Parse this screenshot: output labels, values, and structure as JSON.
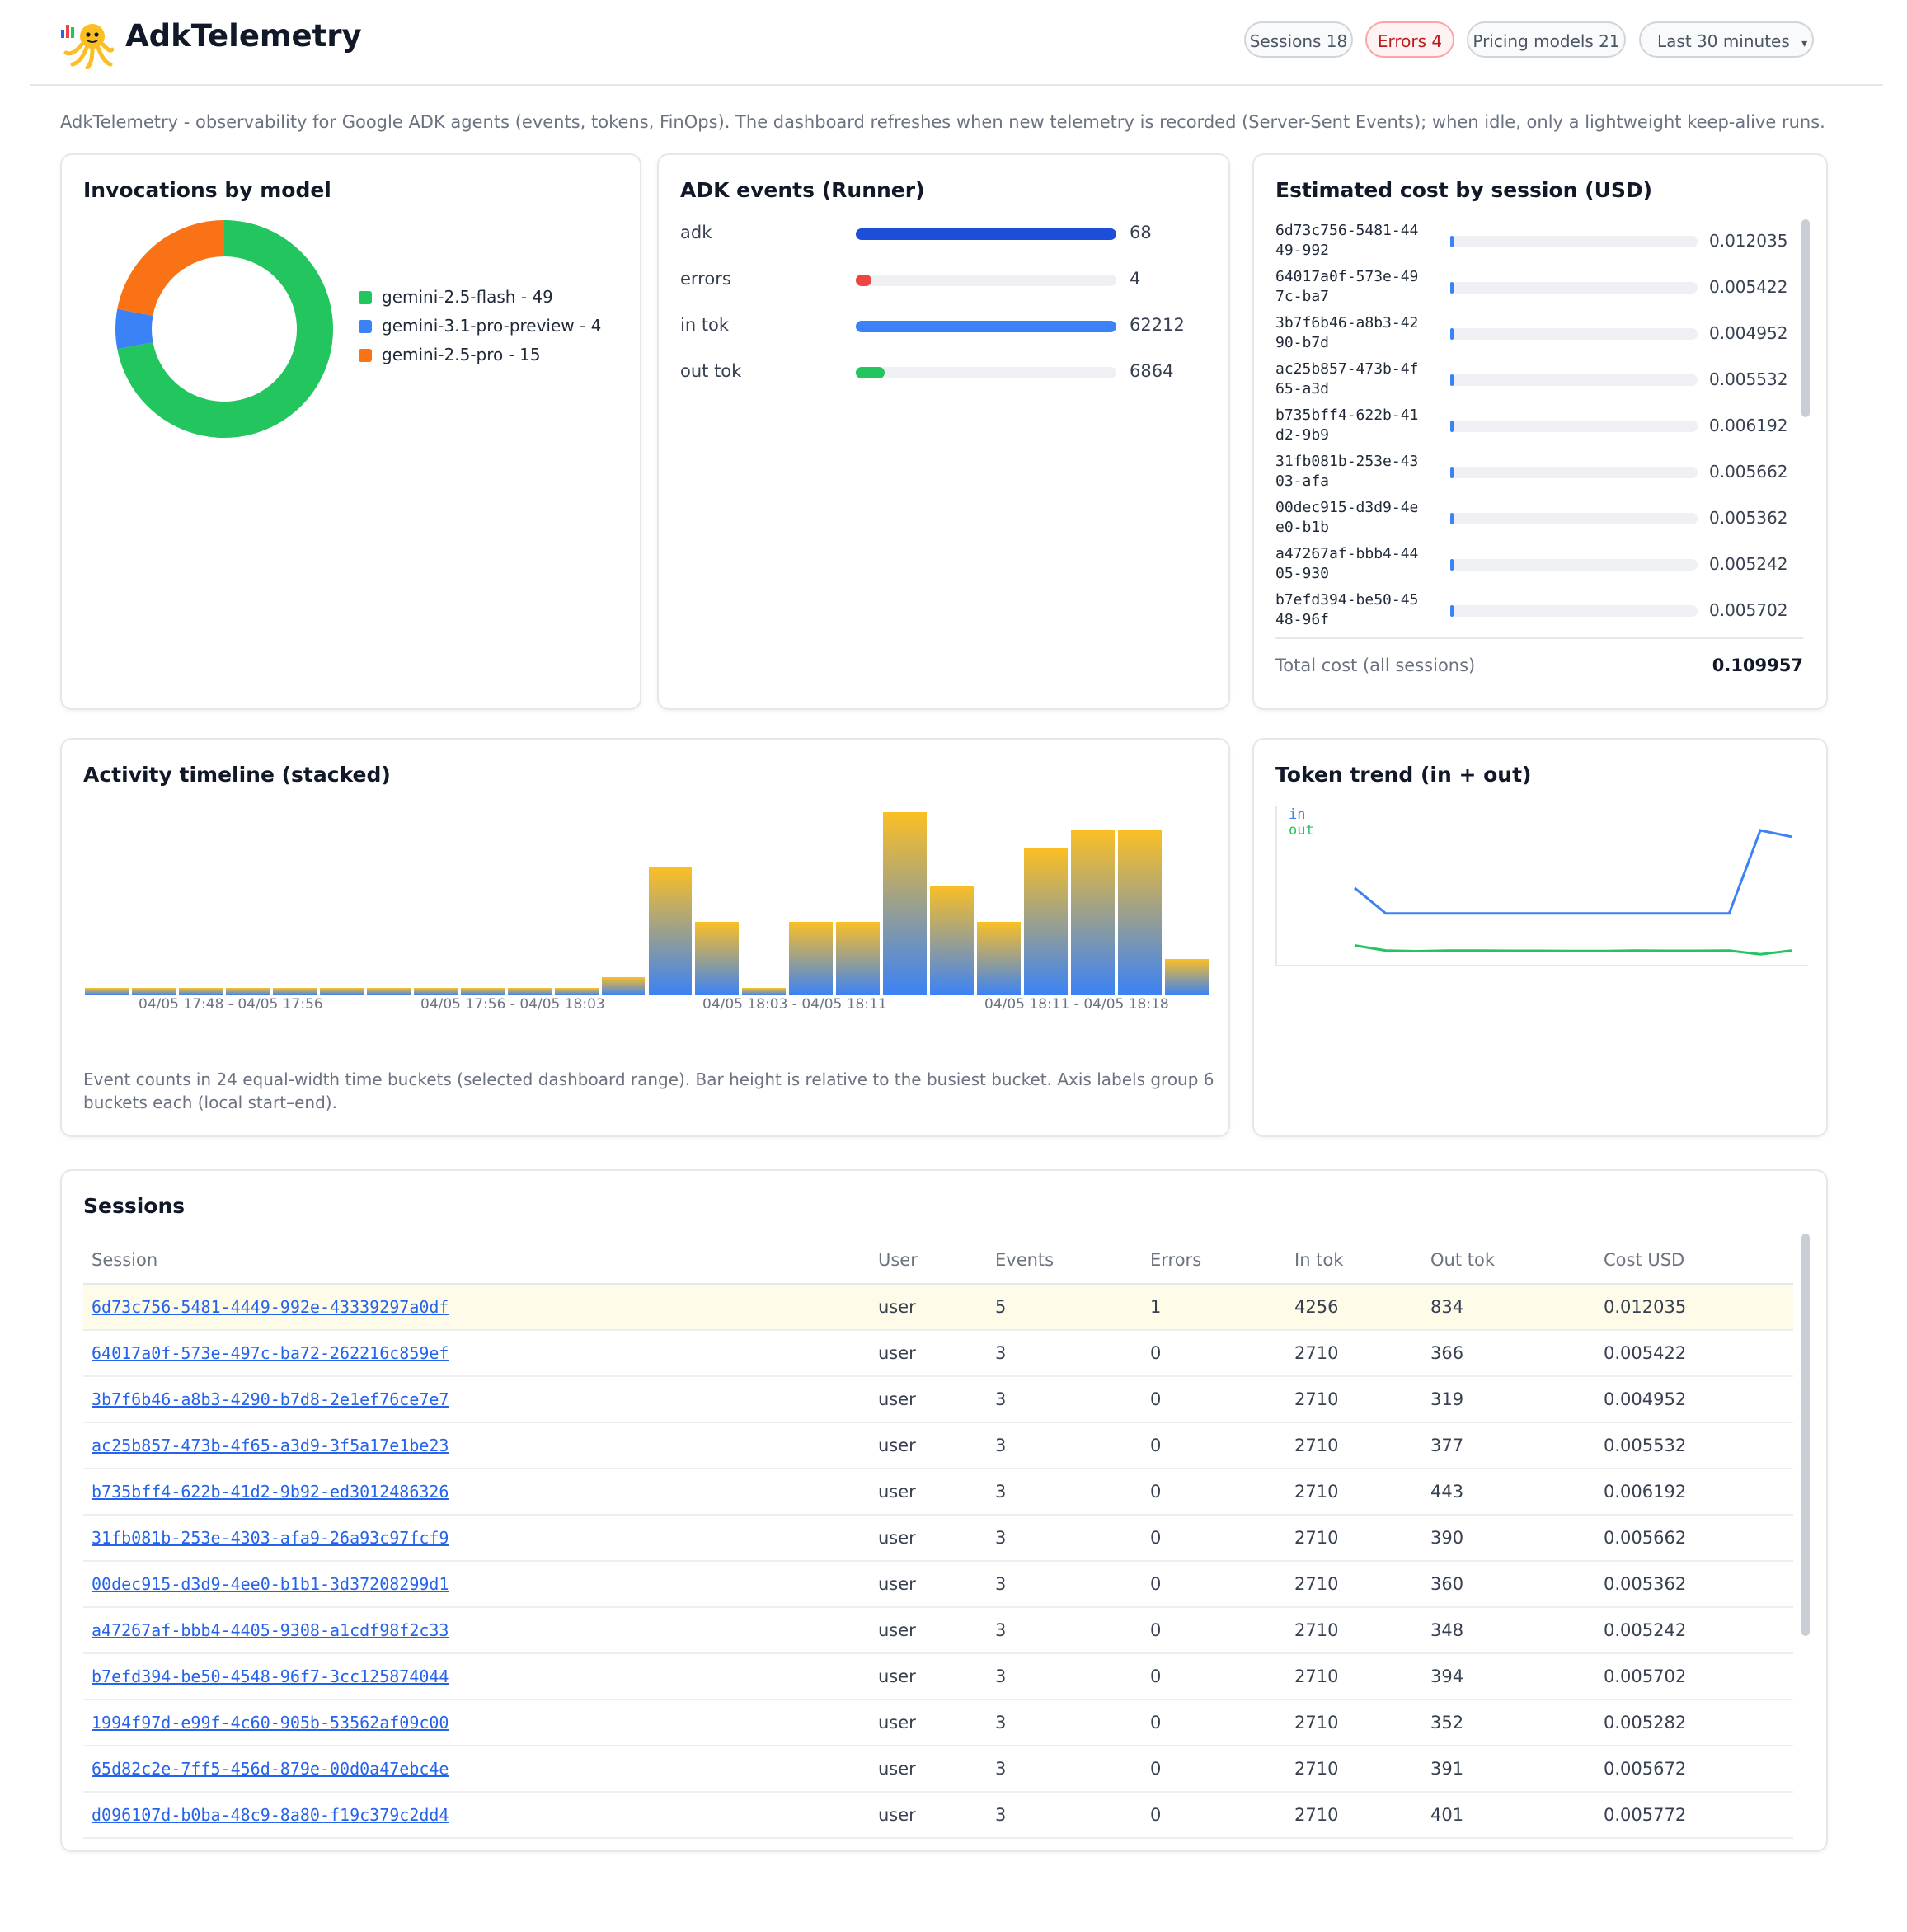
{
  "app": {
    "title": "AdkTelemetry"
  },
  "header": {
    "sessions_pill": "Sessions 18",
    "errors_pill": "Errors 4",
    "pricing_pill": "Pricing models 21",
    "range_select": "Last 30 minutes",
    "range_chevron": "▾"
  },
  "subtitle": "AdkTelemetry - observability for Google ADK agents (events, tokens, FinOps). The dashboard refreshes when new telemetry is recorded (Server-Sent Events); when idle, only a lightweight keep-alive runs.",
  "colors": {
    "flash": "#22c55e",
    "preview": "#3b82f6",
    "pro": "#f97316",
    "adk": "#1d4ed8",
    "errors": "#ef4444",
    "in_tok": "#3b82f6",
    "out_tok": "#22c55e",
    "accent": "#2563eb"
  },
  "invocations": {
    "title": "Invocations by model",
    "legend": [
      {
        "label": "gemini-2.5-flash - 49",
        "value": 49,
        "color": "#22c55e"
      },
      {
        "label": "gemini-3.1-pro-preview - 4",
        "value": 4,
        "color": "#3b82f6"
      },
      {
        "label": "gemini-2.5-pro - 15",
        "value": 15,
        "color": "#f97316"
      }
    ]
  },
  "adk_events": {
    "title": "ADK events (Runner)",
    "rows": [
      {
        "label": "adk",
        "value": "68",
        "fraction": 1.0,
        "color": "#1d4ed8"
      },
      {
        "label": "errors",
        "value": "4",
        "fraction": 0.06,
        "color": "#ef4444"
      },
      {
        "label": "in tok",
        "value": "62212",
        "fraction": 1.0,
        "color": "#3b82f6"
      },
      {
        "label": "out tok",
        "value": "6864",
        "fraction": 0.11,
        "color": "#22c55e"
      }
    ]
  },
  "cost_by_session": {
    "title": "Estimated cost by session (USD)",
    "rows": [
      {
        "id": "6d73c756-5481-4449-992",
        "value": "0.012035"
      },
      {
        "id": "64017a0f-573e-497c-ba7",
        "value": "0.005422"
      },
      {
        "id": "3b7f6b46-a8b3-4290-b7d",
        "value": "0.004952"
      },
      {
        "id": "ac25b857-473b-4f65-a3d",
        "value": "0.005532"
      },
      {
        "id": "b735bff4-622b-41d2-9b9",
        "value": "0.006192"
      },
      {
        "id": "31fb081b-253e-4303-afa",
        "value": "0.005662"
      },
      {
        "id": "00dec915-d3d9-4ee0-b1b",
        "value": "0.005362"
      },
      {
        "id": "a47267af-bbb4-4405-930",
        "value": "0.005242"
      },
      {
        "id": "b7efd394-be50-4548-96f",
        "value": "0.005702"
      }
    ],
    "total_label": "Total cost (all sessions)",
    "total_value": "0.109957"
  },
  "activity": {
    "title": "Activity timeline (stacked)",
    "axis_labels": [
      "04/05 17:48 - 04/05 17:56",
      "04/05 17:56 - 04/05 18:03",
      "04/05 18:03 - 04/05 18:11",
      "04/05 18:11 - 04/05 18:18"
    ],
    "note": "Event counts in 24 equal-width time buckets (selected dashboard range). Bar height is relative to the busiest bucket. Axis labels group 6 buckets each (local start–end).",
    "chart_data": {
      "type": "bar",
      "bucket_count": 24,
      "values_relative": [
        0.04,
        0.04,
        0.04,
        0.04,
        0.04,
        0.04,
        0.04,
        0.04,
        0.04,
        0.04,
        0.04,
        0.1,
        0.7,
        0.4,
        0.04,
        0.4,
        0.4,
        1.0,
        0.6,
        0.4,
        0.8,
        0.9,
        0.9,
        0.2
      ]
    }
  },
  "token_trend": {
    "title": "Token trend (in + out)",
    "legend_in": "in",
    "legend_out": "out",
    "chart_data": {
      "type": "line",
      "series": [
        {
          "name": "in",
          "values": [
            0.55,
            0.35,
            0.35,
            0.35,
            0.35,
            0.35,
            0.35,
            0.35,
            0.35,
            0.35,
            0.35,
            0.35,
            0.35,
            1.0,
            0.95
          ]
        },
        {
          "name": "out",
          "values": [
            0.1,
            0.06,
            0.055,
            0.06,
            0.06,
            0.058,
            0.058,
            0.056,
            0.056,
            0.06,
            0.058,
            0.058,
            0.06,
            0.03,
            0.06
          ]
        }
      ]
    }
  },
  "sessions": {
    "title": "Sessions",
    "columns": [
      "Session",
      "User",
      "Events",
      "Errors",
      "In tok",
      "Out tok",
      "Cost USD"
    ],
    "rows": [
      [
        "6d73c756-5481-4449-992e-43339297a0df",
        "user",
        "5",
        "1",
        "4256",
        "834",
        "0.012035"
      ],
      [
        "64017a0f-573e-497c-ba72-262216c859ef",
        "user",
        "3",
        "0",
        "2710",
        "366",
        "0.005422"
      ],
      [
        "3b7f6b46-a8b3-4290-b7d8-2e1ef76ce7e7",
        "user",
        "3",
        "0",
        "2710",
        "319",
        "0.004952"
      ],
      [
        "ac25b857-473b-4f65-a3d9-3f5a17e1be23",
        "user",
        "3",
        "0",
        "2710",
        "377",
        "0.005532"
      ],
      [
        "b735bff4-622b-41d2-9b92-ed3012486326",
        "user",
        "3",
        "0",
        "2710",
        "443",
        "0.006192"
      ],
      [
        "31fb081b-253e-4303-afa9-26a93c97fcf9",
        "user",
        "3",
        "0",
        "2710",
        "390",
        "0.005662"
      ],
      [
        "00dec915-d3d9-4ee0-b1b1-3d37208299d1",
        "user",
        "3",
        "0",
        "2710",
        "360",
        "0.005362"
      ],
      [
        "a47267af-bbb4-4405-9308-a1cdf98f2c33",
        "user",
        "3",
        "0",
        "2710",
        "348",
        "0.005242"
      ],
      [
        "b7efd394-be50-4548-96f7-3cc125874044",
        "user",
        "3",
        "0",
        "2710",
        "394",
        "0.005702"
      ],
      [
        "1994f97d-e99f-4c60-905b-53562af09c00",
        "user",
        "3",
        "0",
        "2710",
        "352",
        "0.005282"
      ],
      [
        "65d82c2e-7ff5-456d-879e-00d0a47ebc4e",
        "user",
        "3",
        "0",
        "2710",
        "391",
        "0.005672"
      ],
      [
        "d096107d-b0ba-48c9-8a80-f19c379c2dd4",
        "user",
        "3",
        "0",
        "2710",
        "401",
        "0.005772"
      ]
    ]
  }
}
